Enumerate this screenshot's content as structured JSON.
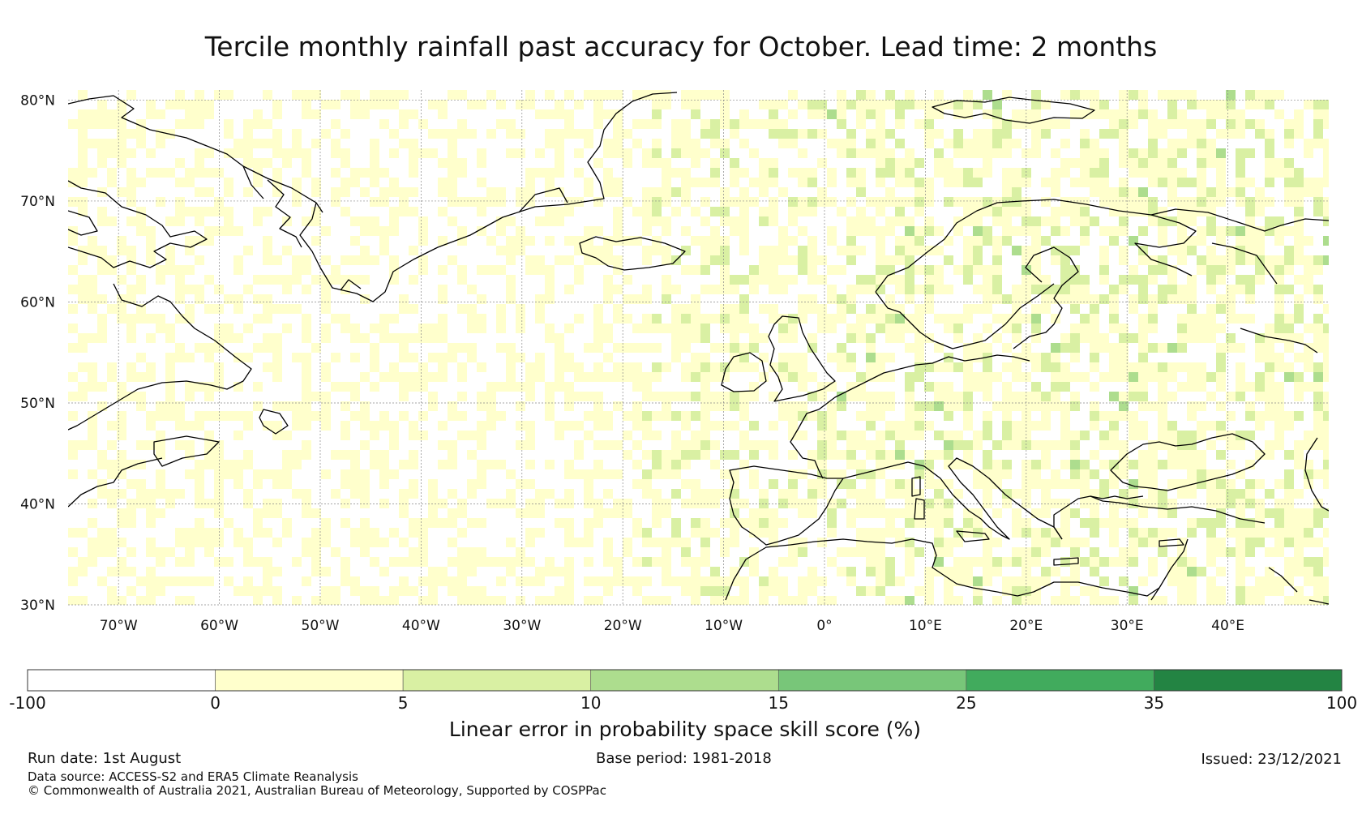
{
  "title": "Tercile monthly rainfall past accuracy for October. Lead time: 2 months",
  "map": {
    "lon_range": [
      -75,
      50
    ],
    "lat_range": [
      30,
      81
    ],
    "lat_labels": [
      {
        "value": 80,
        "text": "80°N"
      },
      {
        "value": 70,
        "text": "70°N"
      },
      {
        "value": 60,
        "text": "60°N"
      },
      {
        "value": 50,
        "text": "50°N"
      },
      {
        "value": 40,
        "text": "40°N"
      },
      {
        "value": 30,
        "text": "30°N"
      }
    ],
    "lon_labels": [
      {
        "value": -70,
        "text": "70°W"
      },
      {
        "value": -60,
        "text": "60°W"
      },
      {
        "value": -50,
        "text": "50°W"
      },
      {
        "value": -40,
        "text": "40°W"
      },
      {
        "value": -30,
        "text": "30°W"
      },
      {
        "value": -20,
        "text": "20°W"
      },
      {
        "value": -10,
        "text": "10°W"
      },
      {
        "value": 0,
        "text": "0°"
      },
      {
        "value": 10,
        "text": "10°E"
      },
      {
        "value": 20,
        "text": "20°E"
      },
      {
        "value": 30,
        "text": "30°E"
      },
      {
        "value": 40,
        "text": "40°E"
      }
    ],
    "gridlines": true,
    "coastline_color": "#000000",
    "field_description_colors": {
      "none": "#ffffff",
      "light": "#ffffcc",
      "mid": "#d9f0a3",
      "high": "#addd8e"
    }
  },
  "colorbar": {
    "ticks": [
      "-100",
      "0",
      "5",
      "10",
      "15",
      "25",
      "35",
      "100"
    ],
    "colors": [
      "#ffffff",
      "#ffffcc",
      "#d9f0a3",
      "#addd8e",
      "#78c679",
      "#41ab5d",
      "#238443"
    ],
    "label": "Linear error in probability space skill score (%)"
  },
  "footer": {
    "run_date": "Run date: 1st August",
    "base_period": "Base period: 1981-2018",
    "issued": "Issued: 23/12/2021",
    "data_source": "Data source: ACCESS-S2 and ERA5 Climate Reanalysis",
    "copyright": "© Commonwealth of Australia 2021, Australian Bureau of Meteorology, Supported by COSPPac"
  }
}
